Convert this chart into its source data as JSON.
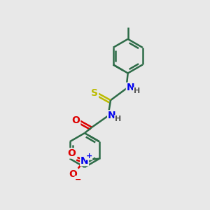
{
  "bg_color": "#e8e8e8",
  "bond_color": "#2d6b47",
  "bond_width": 1.8,
  "atom_colors": {
    "N": "#0000ee",
    "O": "#dd0000",
    "S": "#bbbb00",
    "H": "#555555"
  },
  "font_size": 10,
  "font_size_small": 8
}
